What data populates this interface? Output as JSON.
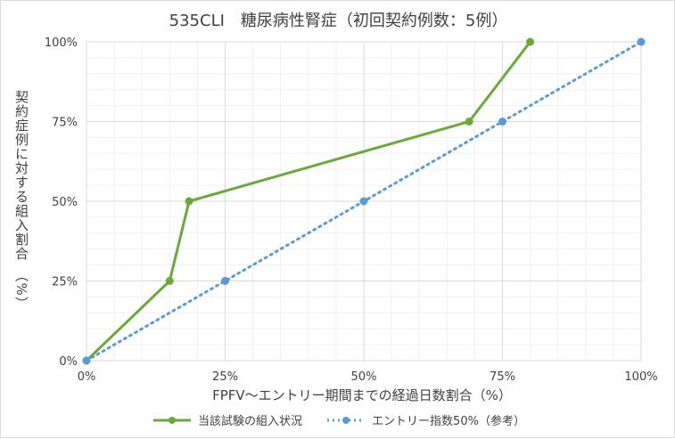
{
  "chart_data": {
    "type": "line",
    "title": "535CLI　糖尿病性腎症（初回契約例数：5例）",
    "xlabel": "FPFV～エントリー期間までの経過日数割合（%）",
    "ylabel": "契約症例に対する組入割合　（%）",
    "xlim": [
      0,
      100
    ],
    "ylim": [
      0,
      100
    ],
    "x_ticks": [
      "0%",
      "25%",
      "50%",
      "75%",
      "100%"
    ],
    "y_ticks": [
      "0%",
      "25%",
      "50%",
      "75%",
      "100%"
    ],
    "grid": true,
    "legend_position": "bottom",
    "series": [
      {
        "name": "当該試験の組入状況",
        "color": "#6aaa3a",
        "style": "solid",
        "points": [
          [
            0,
            0
          ],
          [
            15,
            25
          ],
          [
            18.5,
            50
          ],
          [
            69,
            75
          ],
          [
            80,
            100
          ]
        ]
      },
      {
        "name": "エントリー指数50%（参考）",
        "color": "#5b9bd5",
        "style": "dotted",
        "points": [
          [
            0,
            0
          ],
          [
            25,
            25
          ],
          [
            50,
            50
          ],
          [
            75,
            75
          ],
          [
            100,
            100
          ]
        ]
      }
    ]
  }
}
